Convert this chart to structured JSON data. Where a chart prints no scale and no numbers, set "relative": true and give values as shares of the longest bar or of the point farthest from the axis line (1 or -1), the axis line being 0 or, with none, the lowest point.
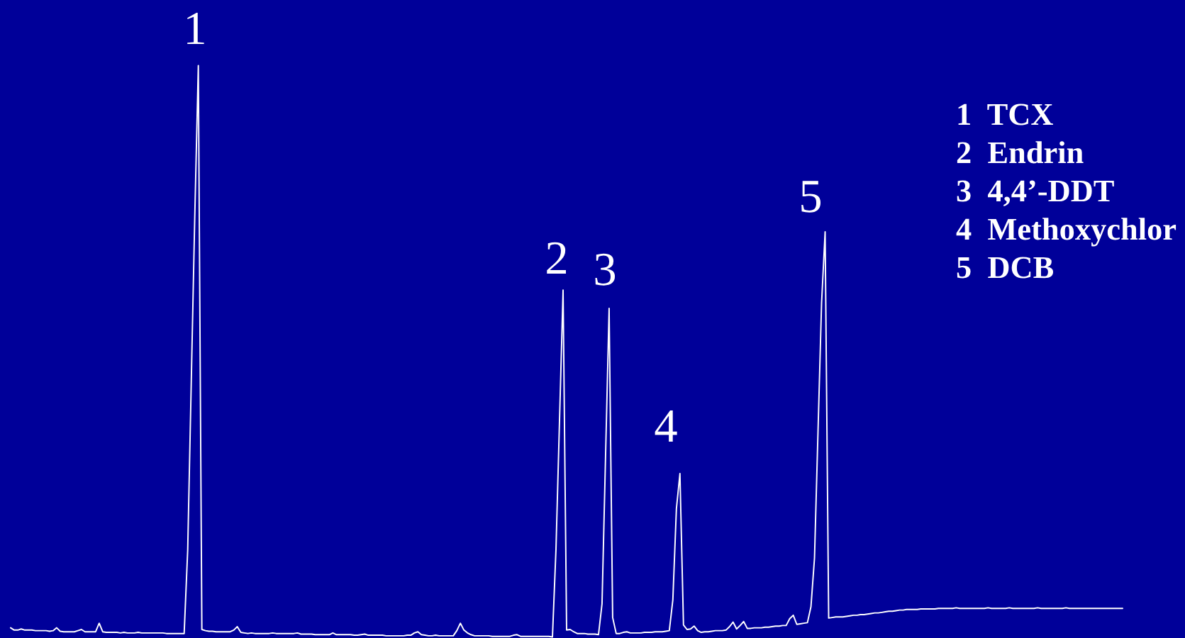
{
  "chart_data": {
    "type": "line",
    "relative": true,
    "categories": [
      null,
      null,
      null,
      null,
      null,
      null,
      null,
      null,
      null,
      null,
      null,
      null,
      null,
      null,
      null,
      null,
      null,
      null,
      null,
      null,
      null,
      null,
      null,
      null,
      null,
      null,
      null,
      null,
      null,
      null,
      null,
      null,
      null,
      null,
      null,
      null,
      null,
      null,
      null,
      null,
      null,
      null,
      null,
      null,
      null,
      null,
      null,
      null,
      null,
      null,
      null,
      null,
      null,
      null,
      null,
      null,
      null,
      null,
      null,
      null,
      null,
      null,
      null,
      null,
      null,
      null,
      null,
      null,
      null,
      null,
      null,
      null,
      null,
      null,
      null,
      null,
      null,
      null,
      null,
      null,
      null,
      null,
      null,
      null,
      null,
      null,
      null,
      null,
      null,
      null,
      null,
      null,
      null,
      null,
      null,
      null,
      null,
      null,
      null,
      null,
      null,
      null,
      null,
      null,
      null,
      null,
      null,
      null,
      null,
      null,
      null,
      null,
      null,
      null,
      null,
      null,
      null,
      null,
      null,
      null,
      null,
      null,
      null,
      null,
      null,
      null,
      null,
      null,
      null,
      null,
      null,
      null,
      null,
      null,
      null,
      null,
      null,
      null,
      null,
      null,
      null,
      null,
      null,
      null,
      null,
      null,
      null,
      null,
      null,
      null,
      null,
      null,
      null,
      null,
      null,
      null,
      null,
      null,
      null,
      null,
      null,
      null,
      null,
      null,
      null,
      null,
      null,
      null,
      null,
      null,
      null,
      null,
      null,
      null,
      null,
      null,
      null,
      null,
      null,
      null,
      null,
      null,
      null,
      null,
      null,
      null,
      null,
      null,
      null,
      null,
      null,
      null,
      null,
      null,
      null,
      null,
      null,
      null,
      null,
      null,
      null,
      null,
      null,
      null,
      null,
      null,
      null,
      null,
      null,
      null,
      null,
      null,
      null,
      null,
      null,
      null,
      null,
      null,
      null,
      null,
      null,
      null,
      null,
      null,
      null,
      null,
      null,
      null,
      null,
      null,
      null,
      null,
      null,
      null,
      null,
      null,
      null,
      null,
      null,
      null,
      null,
      null,
      null,
      null,
      null,
      null,
      null,
      null,
      null,
      null,
      null,
      null,
      null,
      null,
      null,
      null,
      null,
      null,
      null,
      null,
      null,
      null,
      null,
      null,
      null,
      null,
      null,
      null,
      null,
      null,
      null,
      null,
      null,
      null,
      null,
      null,
      null,
      null,
      null,
      null,
      null,
      null,
      null,
      null,
      null,
      null,
      null,
      null,
      null,
      null,
      null,
      null,
      null,
      null,
      null,
      null,
      null,
      null,
      null,
      null,
      null,
      null,
      null,
      null,
      null,
      null,
      null,
      null,
      null,
      null,
      null,
      null,
      null,
      null,
      null
    ],
    "series": [
      {
        "color": "#ffffff",
        "values": [
          0.016,
          0.012,
          0.012,
          0.014,
          0.012,
          0.012,
          0.012,
          0.011,
          0.011,
          0.011,
          0.011,
          0.01,
          0.011,
          0.016,
          0.01,
          0.009,
          0.009,
          0.009,
          0.009,
          0.011,
          0.013,
          0.009,
          0.009,
          0.009,
          0.009,
          0.024,
          0.009,
          0.008,
          0.008,
          0.008,
          0.008,
          0.007,
          0.008,
          0.007,
          0.007,
          0.007,
          0.008,
          0.007,
          0.007,
          0.007,
          0.007,
          0.007,
          0.007,
          0.007,
          0.006,
          0.006,
          0.006,
          0.006,
          0.006,
          0.006,
          0.152,
          0.444,
          0.737,
          1.0,
          0.013,
          0.011,
          0.01,
          0.01,
          0.009,
          0.009,
          0.009,
          0.009,
          0.009,
          0.012,
          0.018,
          0.008,
          0.007,
          0.006,
          0.007,
          0.006,
          0.006,
          0.006,
          0.006,
          0.006,
          0.007,
          0.006,
          0.006,
          0.006,
          0.006,
          0.006,
          0.006,
          0.007,
          0.005,
          0.005,
          0.005,
          0.005,
          0.004,
          0.004,
          0.004,
          0.004,
          0.004,
          0.007,
          0.004,
          0.004,
          0.004,
          0.004,
          0.004,
          0.003,
          0.003,
          0.004,
          0.005,
          0.003,
          0.003,
          0.003,
          0.003,
          0.003,
          0.002,
          0.002,
          0.002,
          0.002,
          0.002,
          0.002,
          0.003,
          0.003,
          0.007,
          0.009,
          0.004,
          0.003,
          0.002,
          0.002,
          0.003,
          0.002,
          0.002,
          0.002,
          0.002,
          0.002,
          0.011,
          0.024,
          0.012,
          0.007,
          0.004,
          0.002,
          0.002,
          0.002,
          0.002,
          0.002,
          0.001,
          0.001,
          0.001,
          0.001,
          0.001,
          0.001,
          0.003,
          0.004,
          0.001,
          0.001,
          0.001,
          0.001,
          0.001,
          0.001,
          0.001,
          0.001,
          0.001,
          0,
          0.154,
          0.38,
          0.607,
          0.012,
          0.013,
          0.009,
          0.006,
          0.006,
          0.006,
          0.005,
          0.005,
          0.005,
          0.004,
          0.058,
          0.317,
          0.575,
          0.034,
          0.006,
          0.006,
          0.008,
          0.009,
          0.007,
          0.007,
          0.007,
          0.007,
          0.008,
          0.008,
          0.008,
          0.009,
          0.009,
          0.009,
          0.01,
          0.011,
          0.065,
          0.224,
          0.286,
          0.021,
          0.013,
          0.014,
          0.019,
          0.011,
          0.008,
          0.009,
          0.009,
          0.01,
          0.011,
          0.011,
          0.011,
          0.012,
          0.018,
          0.026,
          0.014,
          0.02,
          0.027,
          0.015,
          0.015,
          0.016,
          0.016,
          0.016,
          0.017,
          0.017,
          0.018,
          0.019,
          0.019,
          0.02,
          0.02,
          0.032,
          0.038,
          0.022,
          0.023,
          0.024,
          0.025,
          0.053,
          0.138,
          0.362,
          0.585,
          0.709,
          0.033,
          0.034,
          0.035,
          0.035,
          0.035,
          0.036,
          0.037,
          0.038,
          0.038,
          0.039,
          0.039,
          0.04,
          0.041,
          0.042,
          0.042,
          0.043,
          0.044,
          0.045,
          0.045,
          0.046,
          0.047,
          0.047,
          0.048,
          0.048,
          0.048,
          0.048,
          0.049,
          0.049,
          0.049,
          0.049,
          0.049,
          0.05,
          0.05,
          0.05,
          0.05,
          0.05,
          0.051,
          0.05,
          0.05,
          0.05,
          0.05,
          0.05,
          0.05,
          0.05,
          0.05,
          0.051,
          0.05,
          0.05,
          0.05,
          0.05,
          0.05,
          0.051,
          0.05,
          0.05,
          0.05,
          0.05,
          0.05,
          0.05,
          0.05,
          0.051,
          0.05,
          0.05,
          0.05,
          0.05,
          0.05,
          0.05,
          0.05,
          0.051,
          0.05,
          0.05,
          0.05,
          0.05,
          0.05,
          0.05,
          0.05,
          0.05,
          0.05,
          0.05,
          0.05,
          0.05,
          0.05,
          0.05,
          0.05,
          0.05
        ]
      }
    ],
    "annotations": [
      "1",
      "2",
      "3",
      "4",
      "5",
      "1  TCX",
      "2  Endrin",
      "3  4,4’-DDT",
      "4  Methoxychlor",
      "5  DCB"
    ]
  }
}
